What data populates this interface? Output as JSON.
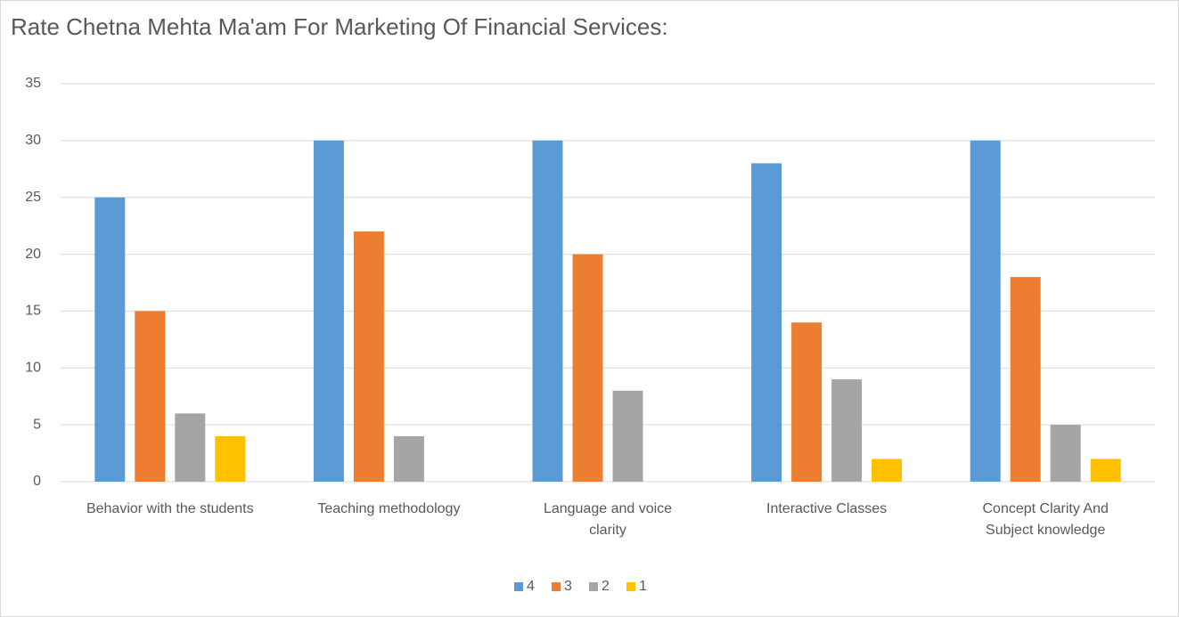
{
  "chart_data": {
    "type": "bar",
    "title": "Rate Chetna Mehta Ma'am For Marketing Of Financial Services:",
    "categories": [
      "Behavior with the students",
      "Teaching methodology",
      "Language and voice clarity",
      "Interactive Classes",
      "Concept Clarity And Subject knowledge"
    ],
    "series": [
      {
        "name": "4",
        "color": "#5b9bd5",
        "values": [
          25,
          30,
          30,
          28,
          30
        ]
      },
      {
        "name": "3",
        "color": "#ed7d31",
        "values": [
          15,
          22,
          20,
          14,
          18
        ]
      },
      {
        "name": "2",
        "color": "#a5a5a5",
        "values": [
          6,
          4,
          8,
          9,
          5
        ]
      },
      {
        "name": "1",
        "color": "#ffc000",
        "values": [
          4,
          0,
          0,
          2,
          2
        ]
      }
    ],
    "ylim": [
      0,
      35
    ],
    "yticks": [
      0,
      5,
      10,
      15,
      20,
      25,
      30,
      35
    ],
    "grid": true,
    "legend": "bottom"
  }
}
